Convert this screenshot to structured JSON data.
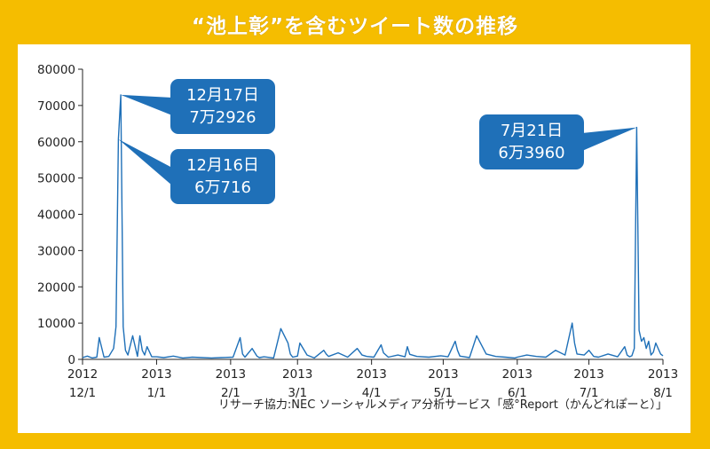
{
  "title": "“池上彰”を含むツイート数の推移",
  "source": "リサーチ協力:NEC ソーシャルメディア分析サービス「感°Report（かんどれぽーと）」",
  "colors": {
    "background": "#f5bd00",
    "line": "#1f70b8",
    "callout": "#1f70b8",
    "panel": "#ffffff"
  },
  "chart_data": {
    "type": "line",
    "title": "“池上彰”を含むツイート数の推移",
    "xlabel": "",
    "ylabel": "",
    "ylim": [
      0,
      80000
    ],
    "yticks": [
      0,
      10000,
      20000,
      30000,
      40000,
      50000,
      60000,
      70000,
      80000
    ],
    "xlim": [
      "2012-12-01",
      "2013-08-01"
    ],
    "xticks": [
      {
        "date": "2012-12-01",
        "year": "2012",
        "md": "12/1"
      },
      {
        "date": "2013-01-01",
        "year": "2013",
        "md": "1/1"
      },
      {
        "date": "2013-02-01",
        "year": "2013",
        "md": "2/1"
      },
      {
        "date": "2013-03-01",
        "year": "2013",
        "md": "3/1"
      },
      {
        "date": "2013-04-01",
        "year": "2013",
        "md": "4/1"
      },
      {
        "date": "2013-05-01",
        "year": "2013",
        "md": "5/1"
      },
      {
        "date": "2013-06-01",
        "year": "2013",
        "md": "6/1"
      },
      {
        "date": "2013-07-01",
        "year": "2013",
        "md": "7/1"
      },
      {
        "date": "2013-08-01",
        "year": "2013",
        "md": "8/1"
      }
    ],
    "grid": false,
    "series": [
      {
        "x": [
          "2012-12-01",
          "2012-12-03",
          "2012-12-05",
          "2012-12-07",
          "2012-12-08",
          "2012-12-10",
          "2012-12-12",
          "2012-12-14",
          "2012-12-15",
          "2012-12-16",
          "2012-12-17",
          "2012-12-18",
          "2012-12-19",
          "2012-12-20",
          "2012-12-22",
          "2012-12-24",
          "2012-12-25",
          "2012-12-26",
          "2012-12-27",
          "2012-12-28",
          "2012-12-30",
          "2013-01-01",
          "2013-01-04",
          "2013-01-08",
          "2013-01-12",
          "2013-01-16",
          "2013-01-20",
          "2013-01-24",
          "2013-01-28",
          "2013-02-02",
          "2013-02-05",
          "2013-02-06",
          "2013-02-07",
          "2013-02-10",
          "2013-02-12",
          "2013-02-13",
          "2013-02-15",
          "2013-02-19",
          "2013-02-22",
          "2013-02-25",
          "2013-02-26",
          "2013-02-27",
          "2013-03-01",
          "2013-03-02",
          "2013-03-05",
          "2013-03-08",
          "2013-03-12",
          "2013-03-13",
          "2013-03-14",
          "2013-03-18",
          "2013-03-22",
          "2013-03-26",
          "2013-03-28",
          "2013-03-30",
          "2013-04-02",
          "2013-04-05",
          "2013-04-06",
          "2013-04-08",
          "2013-04-12",
          "2013-04-15",
          "2013-04-16",
          "2013-04-17",
          "2013-04-20",
          "2013-04-25",
          "2013-04-30",
          "2013-05-03",
          "2013-05-06",
          "2013-05-07",
          "2013-05-08",
          "2013-05-12",
          "2013-05-15",
          "2013-05-19",
          "2013-05-23",
          "2013-05-27",
          "2013-05-31",
          "2013-06-01",
          "2013-06-05",
          "2013-06-09",
          "2013-06-13",
          "2013-06-17",
          "2013-06-21",
          "2013-06-24",
          "2013-06-25",
          "2013-06-26",
          "2013-06-29",
          "2013-07-01",
          "2013-07-03",
          "2013-07-05",
          "2013-07-09",
          "2013-07-13",
          "2013-07-16",
          "2013-07-17",
          "2013-07-18",
          "2013-07-19",
          "2013-07-20",
          "2013-07-21",
          "2013-07-22",
          "2013-07-23",
          "2013-07-24",
          "2013-07-25",
          "2013-07-26",
          "2013-07-27",
          "2013-07-28",
          "2013-07-29",
          "2013-07-31",
          "2013-08-01"
        ],
        "y": [
          500,
          900,
          400,
          600,
          6000,
          600,
          800,
          3000,
          9000,
          60716,
          72926,
          9000,
          2500,
          1200,
          6500,
          800,
          6500,
          2500,
          1200,
          3500,
          700,
          700,
          500,
          900,
          400,
          600,
          500,
          400,
          500,
          600,
          6000,
          1500,
          600,
          3000,
          900,
          500,
          700,
          400,
          8500,
          4500,
          1500,
          600,
          900,
          4500,
          1200,
          400,
          2500,
          1500,
          800,
          1800,
          600,
          3000,
          1200,
          800,
          600,
          4000,
          1800,
          600,
          1200,
          700,
          3500,
          1400,
          800,
          600,
          1000,
          700,
          5000,
          2500,
          900,
          500,
          6500,
          1500,
          800,
          600,
          400,
          600,
          1200,
          800,
          600,
          2500,
          1200,
          10000,
          4500,
          1500,
          1200,
          2500,
          800,
          600,
          1500,
          700,
          3500,
          1200,
          700,
          1000,
          3000,
          63960,
          8000,
          5000,
          6000,
          3000,
          5000,
          1200,
          2000,
          4500,
          1500,
          1000
        ]
      }
    ],
    "annotations": [
      {
        "date": "2012-12-17",
        "value": 72926,
        "lines": [
          "12月17日",
          "7万2926"
        ]
      },
      {
        "date": "2012-12-16",
        "value": 60716,
        "lines": [
          "12月16日",
          "6万716"
        ]
      },
      {
        "date": "2013-07-21",
        "value": 63960,
        "lines": [
          "7月21日",
          "6万3960"
        ]
      }
    ]
  }
}
